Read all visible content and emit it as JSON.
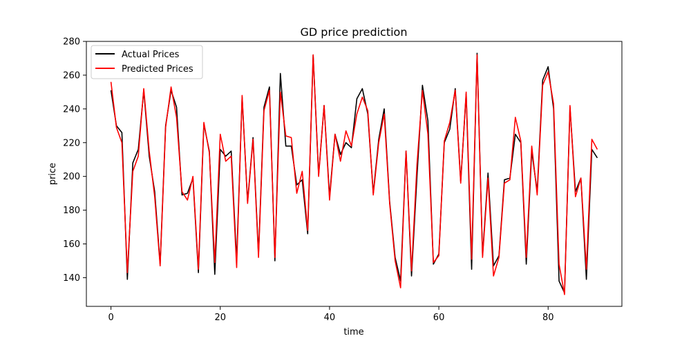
{
  "chart_data": {
    "type": "line",
    "title": "GD price prediction",
    "xlabel": "time",
    "ylabel": "price",
    "xlim": [
      -4.5,
      93.5
    ],
    "ylim": [
      123,
      280
    ],
    "xticks": [
      0,
      20,
      40,
      60,
      80
    ],
    "yticks": [
      140,
      160,
      180,
      200,
      220,
      240,
      260,
      280
    ],
    "grid": false,
    "legend_position": "top-left",
    "series": [
      {
        "name": "Actual Prices",
        "color": "#000000",
        "values": [
          251,
          230,
          226,
          139,
          208,
          216,
          251,
          212,
          191,
          148,
          230,
          251,
          241,
          189,
          190,
          199,
          143,
          231,
          215,
          142,
          216,
          212,
          215,
          150,
          247,
          185,
          223,
          154,
          241,
          253,
          150,
          261,
          218,
          218,
          195,
          198,
          166,
          272,
          201,
          242,
          188,
          225,
          213,
          220,
          217,
          246,
          252,
          237,
          190,
          222,
          240,
          185,
          152,
          138,
          215,
          141,
          200,
          254,
          233,
          148,
          154,
          220,
          228,
          252,
          197,
          249,
          145,
          273,
          153,
          202,
          147,
          153,
          198,
          199,
          225,
          220,
          148,
          215,
          191,
          257,
          265,
          240,
          138,
          131,
          241,
          191,
          199,
          139,
          216,
          211
        ]
      },
      {
        "name": "Predicted Prices",
        "color": "#ff0000",
        "values": [
          256,
          229,
          220,
          143,
          203,
          212,
          252,
          215,
          188,
          147,
          229,
          253,
          235,
          191,
          186,
          200,
          145,
          232,
          214,
          149,
          225,
          209,
          212,
          146,
          248,
          184,
          222,
          152,
          239,
          251,
          152,
          250,
          224,
          223,
          190,
          203,
          168,
          272,
          200,
          242,
          186,
          225,
          209,
          227,
          218,
          237,
          247,
          239,
          189,
          220,
          237,
          184,
          150,
          134,
          215,
          144,
          207,
          251,
          225,
          149,
          153,
          221,
          232,
          251,
          196,
          250,
          151,
          272,
          152,
          199,
          141,
          152,
          196,
          198,
          235,
          221,
          152,
          218,
          189,
          254,
          262,
          243,
          148,
          130,
          242,
          188,
          199,
          145,
          222,
          216
        ]
      }
    ]
  }
}
